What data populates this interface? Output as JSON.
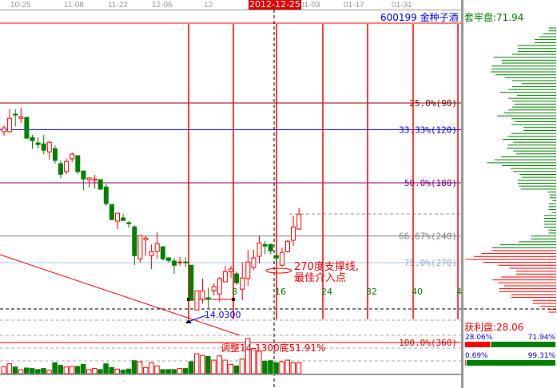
{
  "date_axis": {
    "ticks": [
      "10-25",
      "11-08",
      "11-22",
      "12-06",
      "12",
      "01-03",
      "01-17",
      "01-31"
    ],
    "cursor_date": "2012-12-25"
  },
  "stock": {
    "code": "600199",
    "name": "金种子酒"
  },
  "chips": {
    "trapped_label": "套牢盘:71.94",
    "profit_label": "获利盘:28.06",
    "bar1": {
      "left": "28.06%",
      "right": "71.94%",
      "fraction": 0.2806
    },
    "bar2": {
      "left": "0.69%",
      "right": "99.31%",
      "fraction": 0.0069
    },
    "green_profile": [
      8,
      8,
      14,
      18,
      23,
      23,
      41,
      41,
      41,
      47,
      67,
      58,
      58,
      69,
      69,
      70,
      65,
      55,
      47,
      37,
      47,
      51,
      60,
      42,
      51,
      47,
      45,
      47,
      51,
      56,
      63,
      48,
      44,
      48,
      35,
      35,
      48,
      52,
      57,
      46,
      52,
      53,
      46,
      43,
      59,
      66,
      74,
      58,
      49,
      46,
      39,
      37,
      41,
      41,
      40,
      38,
      9,
      7,
      7,
      4,
      8,
      8,
      8,
      4,
      13,
      13,
      13,
      13,
      13,
      8,
      8,
      27,
      27,
      40,
      60,
      69
    ],
    "red_profile": [
      69,
      80,
      88,
      97,
      78,
      62,
      50,
      43,
      43,
      59,
      68,
      62,
      56,
      61,
      61,
      48,
      48,
      25,
      25,
      17,
      8,
      8
    ]
  },
  "gann_levels": [
    {
      "pct": 0,
      "label": "",
      "color": "#ff0000"
    },
    {
      "pct": 25,
      "label": "25.0%(90)",
      "color": "#800000"
    },
    {
      "pct": 33.33,
      "label": "33.33%(120)",
      "color": "#0000ff"
    },
    {
      "pct": 50,
      "label": "50.0%(180)",
      "color": "#800080"
    },
    {
      "pct": 66.67,
      "label": "66.67%(240)",
      "color": "#808080"
    },
    {
      "pct": 75,
      "label": "75.0%(270)",
      "color": "#a6caf0"
    },
    {
      "pct": 100,
      "label": "100.0%(360)",
      "color": "#ff0000"
    }
  ],
  "cycle_labels": [
    "8",
    "16",
    "24",
    "32",
    "40",
    "4"
  ],
  "annotations": {
    "low_price": "14.0300",
    "support_note_1": "270度支撑线,",
    "support_note_2": "最佳介入点",
    "adjust_note": "调整14.1300底51.91%"
  },
  "colors": {
    "up": "#ff0000",
    "down": "#008000"
  },
  "candles_note_units": "retracement %",
  "candles": [
    [
      "u",
      32.8,
      34,
      32,
      35.3
    ],
    [
      "u",
      29.8,
      34,
      26.8,
      34.3
    ],
    [
      "d",
      28.5,
      28.8,
      27,
      32.3
    ],
    [
      "u",
      29.3,
      29.8,
      26.5,
      31.3
    ],
    [
      "d",
      29.5,
      36,
      29.5,
      36.3
    ],
    [
      "d",
      35.8,
      36.8,
      35,
      39.3
    ],
    [
      "d",
      37.5,
      38,
      35.8,
      39.3
    ],
    [
      "d",
      37.8,
      39.8,
      35,
      41
    ],
    [
      "u",
      37.3,
      40.3,
      37,
      42.8
    ],
    [
      "d",
      39.3,
      43,
      38.3,
      44
    ],
    [
      "d",
      44,
      47.3,
      43,
      48.5
    ],
    [
      "u",
      43.3,
      46.5,
      42.5,
      47.3
    ],
    [
      "u",
      41,
      42.5,
      40.5,
      43.5
    ],
    [
      "d",
      41.5,
      46.5,
      41.5,
      47.3
    ],
    [
      "d",
      46.3,
      48.8,
      46.3,
      52.3
    ],
    [
      "u",
      48.5,
      49,
      48.3,
      51.5
    ],
    [
      "u",
      48.8,
      49.2,
      47.5,
      51.8
    ],
    [
      "d",
      49,
      52,
      49,
      52
    ],
    [
      "d",
      51.3,
      56.5,
      50.3,
      57.3
    ],
    [
      "d",
      56.8,
      61.5,
      56.8,
      61.8
    ],
    [
      "u",
      59.5,
      62,
      59.5,
      64.5
    ],
    [
      "d",
      61,
      61.8,
      59.8,
      61.8
    ],
    [
      "d",
      62.5,
      62.8,
      62,
      64
    ],
    [
      "d",
      63.8,
      72.8,
      63.3,
      75.8
    ],
    [
      "u",
      66.5,
      73.8,
      66.3,
      75
    ],
    [
      "u",
      67.3,
      67.8,
      66.5,
      72.8
    ],
    [
      "u",
      71.5,
      72.8,
      69.3,
      77
    ],
    [
      "u",
      69,
      71.5,
      65.5,
      73.8
    ],
    [
      "d",
      70,
      73.8,
      70,
      74.3
    ],
    [
      "d",
      73.5,
      74.3,
      73.3,
      75
    ],
    [
      "d",
      74.5,
      75.8,
      73.5,
      78.5
    ],
    [
      "u",
      74.8,
      75,
      73.3,
      76
    ],
    [
      "d",
      74.8,
      75,
      73.3,
      76.3
    ],
    [
      "d",
      75.8,
      86.8,
      75.8,
      86.8
    ],
    [
      "u",
      83.8,
      89.8,
      83.8,
      89.8
    ],
    [
      "u",
      83.8,
      86.5,
      80,
      87.8
    ],
    [
      "d",
      86,
      86.5,
      82.8,
      89.3
    ],
    [
      "u",
      82.5,
      83.8,
      81.5,
      85.3
    ],
    [
      "u",
      80,
      84.8,
      79.5,
      87.3
    ],
    [
      "u",
      77.8,
      81,
      76,
      81
    ],
    [
      "u",
      77,
      77.8,
      76,
      79.8
    ],
    [
      "d",
      78.5,
      81.3,
      77.8,
      82
    ],
    [
      "u",
      79.8,
      83.3,
      74.8,
      86.8
    ],
    [
      "u",
      74.8,
      80,
      71,
      82.3
    ],
    [
      "u",
      73.5,
      76.5,
      71,
      77.3
    ],
    [
      "u",
      68.8,
      73,
      66.5,
      75.3
    ],
    [
      "d",
      69.3,
      69.8,
      68.3,
      72.3
    ],
    [
      "d",
      69.3,
      71.3,
      69,
      72.3
    ],
    [
      "d",
      72.8,
      73.5,
      71.8,
      74.8
    ],
    [
      "u",
      71.8,
      75.8,
      70.3,
      76.3
    ],
    [
      "u",
      68.3,
      71.5,
      67.8,
      71.8
    ],
    [
      "u",
      63.8,
      68,
      60.3,
      69.8
    ],
    [
      "u",
      59.8,
      64.5,
      57.8,
      64.8
    ]
  ],
  "volumes": [
    40,
    56,
    38,
    22,
    32,
    29,
    23,
    29,
    19,
    62,
    47,
    38,
    41,
    41,
    53,
    23,
    29,
    23,
    56,
    35,
    26,
    20,
    26,
    74,
    68,
    35,
    62,
    44,
    23,
    23,
    23,
    29,
    29,
    68,
    113,
    104,
    98,
    77,
    101,
    77,
    53,
    44,
    83,
    200,
    143,
    128,
    71,
    74,
    62,
    68,
    77,
    62,
    62
  ]
}
